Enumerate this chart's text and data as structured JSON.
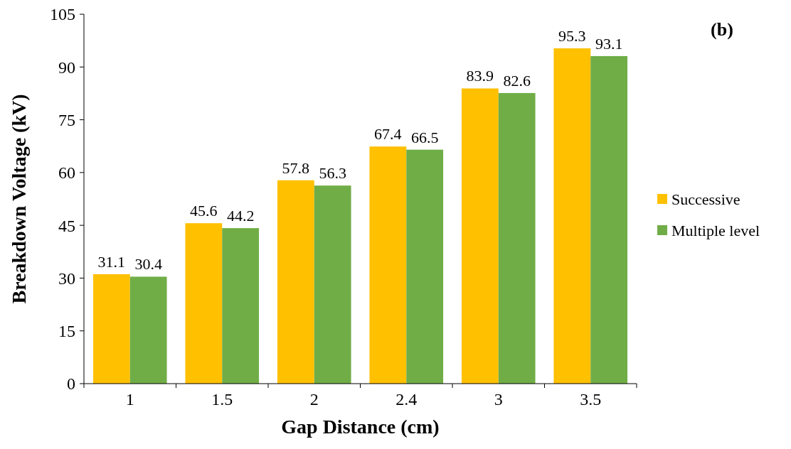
{
  "chart_data": {
    "type": "bar",
    "title": "(b)",
    "xlabel": "Gap Distance (cm)",
    "ylabel": "Breakdown Voltage (kV)",
    "categories": [
      "1",
      "1.5",
      "2",
      "2.4",
      "3",
      "3.5"
    ],
    "series": [
      {
        "name": "Successive",
        "color": "#ffc000",
        "values": [
          31.1,
          45.6,
          57.8,
          67.4,
          83.9,
          95.3
        ]
      },
      {
        "name": "Multiple level",
        "color": "#70ad47",
        "values": [
          30.4,
          44.2,
          56.3,
          66.5,
          82.6,
          93.1
        ]
      }
    ],
    "ylim": [
      0,
      105
    ],
    "yticks": [
      0,
      15,
      30,
      45,
      60,
      75,
      90,
      105
    ],
    "data_labels": true,
    "legend": "right",
    "grid": false
  }
}
